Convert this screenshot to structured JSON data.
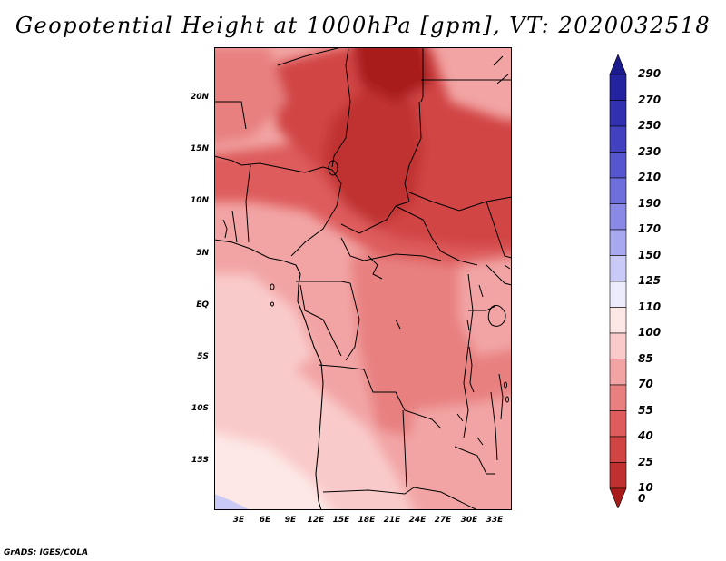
{
  "title": "Geopotential Height at 1000hPa [gpm], VT: 2020032518",
  "footer": "GrADS: IGES/COLA",
  "map": {
    "variable": "Geopotential Height",
    "level": "1000hPa",
    "units": "gpm",
    "valid_time": "2020032518",
    "region": "Central Africa",
    "lon_range": [
      0,
      35
    ],
    "lat_range": [
      -20,
      24
    ],
    "lat_ticks": [
      {
        "value": 20,
        "label": "20N"
      },
      {
        "value": 15,
        "label": "15N"
      },
      {
        "value": 10,
        "label": "10N"
      },
      {
        "value": 5,
        "label": "5N"
      },
      {
        "value": 0,
        "label": "EQ"
      },
      {
        "value": -5,
        "label": "5S"
      },
      {
        "value": -10,
        "label": "10S"
      },
      {
        "value": -15,
        "label": "15S"
      }
    ],
    "lon_ticks": [
      {
        "value": 3,
        "label": "3E"
      },
      {
        "value": 6,
        "label": "6E"
      },
      {
        "value": 9,
        "label": "9E"
      },
      {
        "value": 12,
        "label": "12E"
      },
      {
        "value": 15,
        "label": "15E"
      },
      {
        "value": 18,
        "label": "18E"
      },
      {
        "value": 21,
        "label": "21E"
      },
      {
        "value": 24,
        "label": "24E"
      },
      {
        "value": 27,
        "label": "27E"
      },
      {
        "value": 30,
        "label": "30E"
      },
      {
        "value": 33,
        "label": "33E"
      }
    ]
  },
  "colorbar": {
    "levels": [
      {
        "label": "290",
        "color": "#1a1a8c"
      },
      {
        "label": "270",
        "color": "#2323a0"
      },
      {
        "label": "250",
        "color": "#3030b0"
      },
      {
        "label": "230",
        "color": "#4242c0"
      },
      {
        "label": "210",
        "color": "#5656cf"
      },
      {
        "label": "190",
        "color": "#6e6edd"
      },
      {
        "label": "170",
        "color": "#8a8ae6"
      },
      {
        "label": "150",
        "color": "#a8a8ee"
      },
      {
        "label": "125",
        "color": "#cacaf6"
      },
      {
        "label": "110",
        "color": "#ececfc"
      },
      {
        "label": "100",
        "color": "#fde8e6"
      },
      {
        "label": "85",
        "color": "#f9caca"
      },
      {
        "label": "70",
        "color": "#f2a4a4"
      },
      {
        "label": "55",
        "color": "#e88080"
      },
      {
        "label": "40",
        "color": "#de5c5c"
      },
      {
        "label": "25",
        "color": "#d14444"
      },
      {
        "label": "10",
        "color": "#c03030"
      },
      {
        "label": "0",
        "color": "#a81c1c"
      }
    ]
  }
}
